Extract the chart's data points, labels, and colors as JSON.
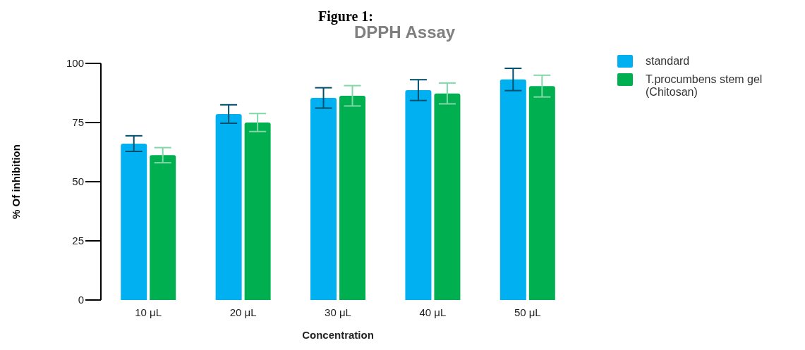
{
  "chart_data": {
    "type": "bar",
    "title": "Figure 1:",
    "subtitle": "DPPH Assay",
    "xlabel": "Concentration",
    "ylabel": "% Of inhibition",
    "categories": [
      "10 μL",
      "20 μL",
      "30 μL",
      "40 μL",
      "50 μL"
    ],
    "series": [
      {
        "name": "standard",
        "color": "#00b0f0",
        "values": [
          66.1,
          78.6,
          85.4,
          88.7,
          93.2
        ],
        "errors": [
          3.3,
          3.9,
          4.3,
          4.4,
          4.7
        ]
      },
      {
        "name": "T.procumbens stem gel (Chitosan)",
        "color": "#00b050",
        "values": [
          61.2,
          75.0,
          86.3,
          87.3,
          90.4
        ],
        "errors": [
          3.2,
          3.8,
          4.3,
          4.4,
          4.6
        ]
      }
    ],
    "ylim": [
      0,
      100
    ],
    "yticks": [
      0,
      25,
      50,
      75,
      100
    ],
    "grid": false,
    "legend": "top right"
  }
}
